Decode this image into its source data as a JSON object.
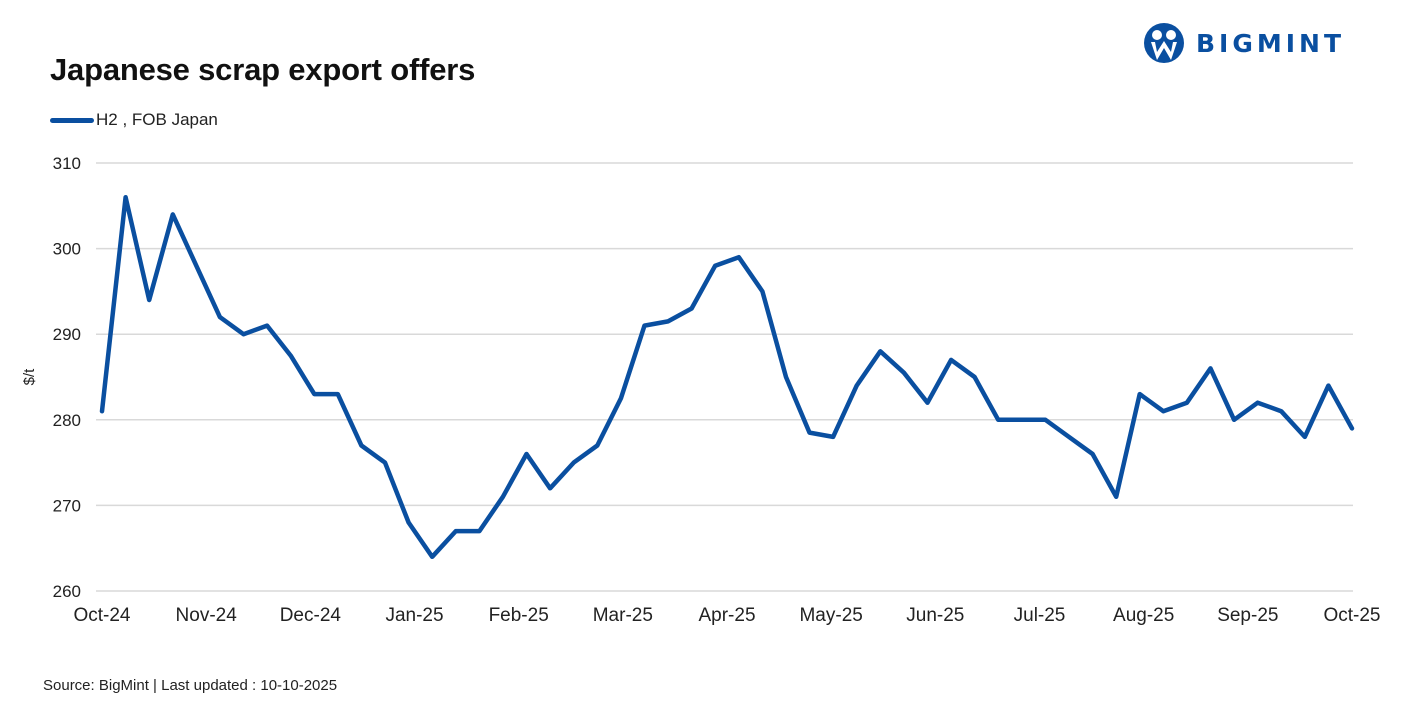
{
  "header": {
    "title": "Japanese scrap export offers",
    "logo_text": "BIGMINT"
  },
  "legend": {
    "items": [
      {
        "label": "H2 , FOB Japan",
        "color": "#0a4fa0"
      }
    ]
  },
  "footer": {
    "source": "Source: BigMint  | Last updated : 10-10-2025"
  },
  "colors": {
    "line": "#0a4fa0",
    "grid": "#d9d9d9",
    "brand": "#0a4fa0"
  },
  "chart_data": {
    "type": "line",
    "title": "Japanese scrap export offers",
    "xlabel": "",
    "ylabel": "$/t",
    "ylim": [
      260,
      310
    ],
    "yticks": [
      310,
      300,
      290,
      280,
      270,
      260
    ],
    "grid": true,
    "legend_position": "top-left",
    "xtick_labels": [
      "Oct-24",
      "Nov-24",
      "Dec-24",
      "Jan-25",
      "Feb-25",
      "Mar-25",
      "Apr-25",
      "May-25",
      "Jun-25",
      "Jul-25",
      "Aug-25",
      "Sep-25",
      "Oct-25"
    ],
    "series": [
      {
        "name": "H2 , FOB Japan",
        "values": [
          281,
          306,
          294,
          304,
          298,
          292,
          290,
          291,
          287.5,
          283,
          283,
          277,
          275,
          268,
          264,
          267,
          267,
          271,
          276,
          272,
          275,
          277,
          282.5,
          291,
          291.5,
          293,
          298,
          299,
          295,
          285,
          278.5,
          278,
          284,
          288,
          285.5,
          282,
          287,
          285,
          280,
          280,
          280,
          278,
          276,
          271,
          283,
          281,
          282,
          286,
          280,
          282,
          281,
          278,
          284,
          279
        ]
      }
    ]
  }
}
